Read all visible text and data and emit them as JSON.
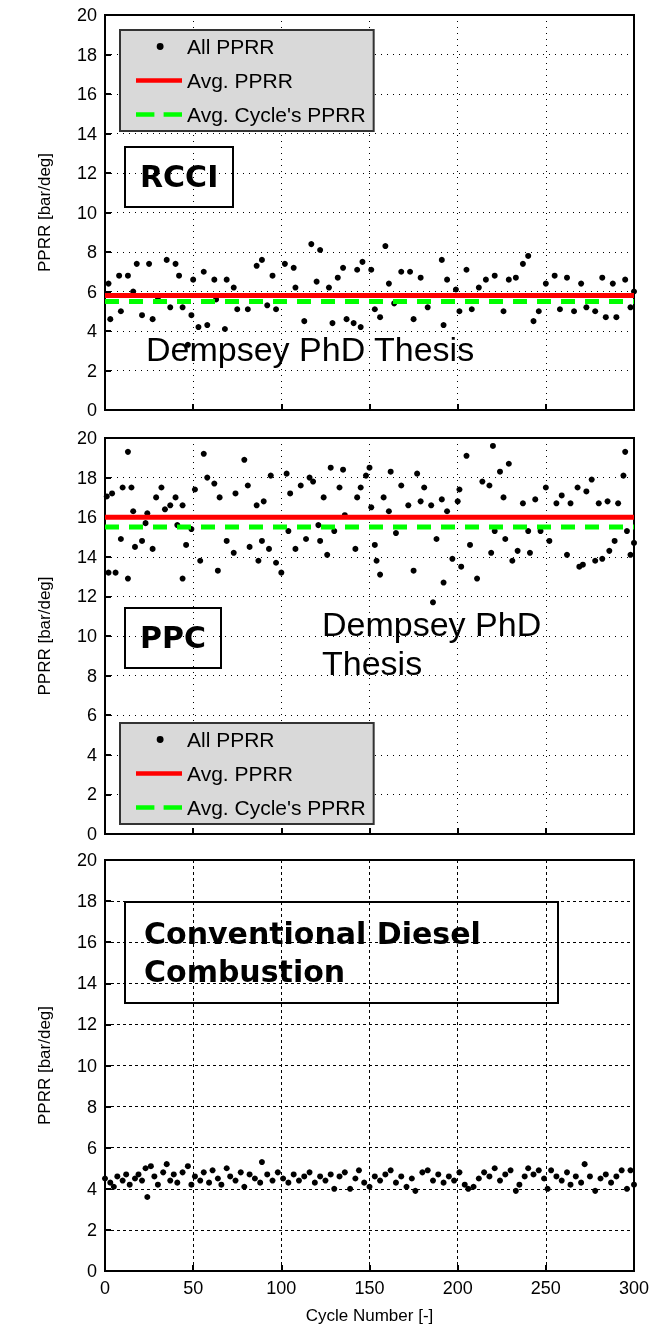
{
  "chart_data": [
    {
      "type": "scatter",
      "ylabel": "PPRR [bar/deg]",
      "annotations": [
        "RCCI",
        "Dempsey PhD Thesis"
      ],
      "xlim": [
        0,
        300
      ],
      "xticks": [
        0,
        50,
        100,
        150,
        200,
        250,
        300
      ],
      "ylim": [
        0,
        20
      ],
      "yticks": [
        0,
        2,
        4,
        6,
        8,
        10,
        12,
        14,
        16,
        18,
        20
      ],
      "tick_labels": "y",
      "grid": true,
      "legend": "top left",
      "series": [
        {
          "name": "All PPRR",
          "color": "#000000",
          "marker": "circle",
          "x": [
            2,
            3,
            8,
            9,
            13,
            16,
            18,
            21,
            25,
            27,
            30,
            35,
            37,
            40,
            42,
            44,
            47,
            49,
            50,
            53,
            56,
            58,
            62,
            63,
            68,
            69,
            73,
            75,
            81,
            86,
            89,
            92,
            95,
            97,
            102,
            107,
            108,
            113,
            117,
            120,
            122,
            127,
            129,
            132,
            135,
            137,
            141,
            143,
            145,
            146,
            151,
            153,
            156,
            159,
            161,
            164,
            168,
            173,
            175,
            179,
            183,
            191,
            192,
            194,
            199,
            201,
            205,
            208,
            212,
            216,
            221,
            226,
            229,
            233,
            237,
            240,
            243,
            246,
            250,
            255,
            258,
            262,
            266,
            270,
            273,
            278,
            282,
            284,
            288,
            290,
            295,
            298,
            300
          ],
          "values": [
            6.4,
            4.6,
            6.8,
            5.0,
            6.8,
            6.0,
            7.4,
            4.8,
            7.4,
            4.6,
            5.6,
            7.6,
            5.2,
            7.4,
            6.8,
            5.2,
            3.3,
            4.8,
            6.6,
            4.2,
            7.0,
            4.3,
            6.6,
            5.6,
            4.1,
            6.6,
            6.2,
            5.1,
            5.1,
            7.3,
            7.6,
            5.3,
            6.8,
            5.1,
            7.4,
            7.2,
            6.2,
            4.5,
            8.4,
            6.5,
            8.1,
            6.2,
            4.4,
            6.7,
            7.2,
            4.6,
            4.4,
            7.1,
            4.2,
            7.5,
            7.1,
            5.1,
            4.7,
            8.3,
            6.4,
            5.4,
            7.0,
            7.0,
            4.6,
            6.7,
            5.2,
            7.6,
            4.3,
            6.6,
            6.1,
            5.0,
            7.1,
            5.1,
            6.2,
            6.6,
            6.8,
            5.0,
            6.6,
            6.7,
            7.4,
            7.8,
            4.5,
            5.0,
            6.4,
            6.8,
            5.1,
            6.7,
            5.0,
            6.4,
            5.2,
            5.0,
            6.7,
            4.7,
            6.4,
            4.7,
            6.6,
            5.2,
            6.0
          ]
        },
        {
          "name": "Avg. PPRR",
          "type": "line",
          "color": "#ff0000",
          "marker": "none",
          "line_style": "solid",
          "x": [
            0,
            300
          ],
          "values": [
            5.8,
            5.8
          ]
        },
        {
          "name": "Avg. Cycle's PPRR",
          "type": "line",
          "color": "#00ff00",
          "marker": "none",
          "line_style": "dashed",
          "x": [
            0,
            300
          ],
          "values": [
            5.5,
            5.5
          ]
        }
      ]
    },
    {
      "type": "scatter",
      "ylabel": "PPRR [bar/deg]",
      "annotations": [
        "PPC",
        "Dempsey PhD Thesis"
      ],
      "xlim": [
        0,
        300
      ],
      "xticks": [
        0,
        50,
        100,
        150,
        200,
        250,
        300
      ],
      "ylim": [
        0,
        20
      ],
      "yticks": [
        0,
        2,
        4,
        6,
        8,
        10,
        12,
        14,
        16,
        18,
        20
      ],
      "tick_labels": "y",
      "grid": true,
      "legend": "bottom left",
      "series": [
        {
          "name": "All PPRR",
          "color": "#000000",
          "marker": "circle",
          "x": [
            1,
            2,
            6,
            4,
            9,
            10,
            13,
            13,
            15,
            16,
            17,
            21,
            23,
            24,
            27,
            29,
            32,
            34,
            37,
            40,
            41,
            44,
            44,
            46,
            49,
            51,
            54,
            56,
            58,
            62,
            64,
            65,
            69,
            73,
            74,
            79,
            81,
            82,
            86,
            87,
            89,
            90,
            93,
            94,
            97,
            100,
            103,
            104,
            105,
            108,
            111,
            114,
            116,
            118,
            121,
            122,
            124,
            126,
            128,
            130,
            133,
            135,
            136,
            142,
            143,
            145,
            148,
            150,
            151,
            153,
            154,
            156,
            158,
            161,
            162,
            165,
            168,
            172,
            175,
            177,
            179,
            181,
            185,
            186,
            188,
            191,
            192,
            194,
            197,
            200,
            201,
            202,
            205,
            207,
            211,
            214,
            218,
            219,
            220,
            221,
            224,
            226,
            227,
            229,
            231,
            234,
            237,
            240,
            241,
            244,
            247,
            250,
            252,
            256,
            259,
            262,
            264,
            268,
            269,
            271,
            273,
            276,
            278,
            280,
            282,
            285,
            286,
            289,
            291,
            295,
            294,
            296,
            298,
            300
          ],
          "values": [
            17.05,
            13.2,
            13.2,
            17.2,
            14.9,
            17.5,
            19.3,
            12.9,
            17.5,
            16.3,
            14.5,
            14.8,
            15.7,
            16.2,
            14.4,
            17.0,
            17.5,
            16.4,
            16.6,
            17.0,
            15.6,
            12.9,
            16.6,
            14.6,
            15.4,
            17.4,
            13.8,
            19.2,
            18.0,
            17.7,
            13.3,
            17.0,
            14.8,
            14.2,
            17.2,
            18.9,
            17.6,
            14.5,
            16.6,
            13.8,
            14.8,
            16.8,
            14.4,
            18.1,
            13.7,
            13.2,
            18.2,
            15.3,
            17.2,
            14.4,
            17.6,
            14.9,
            18.0,
            17.8,
            15.6,
            14.8,
            17.0,
            14.1,
            18.5,
            15.3,
            17.5,
            18.4,
            16.1,
            14.4,
            17.0,
            17.5,
            18.1,
            18.5,
            16.5,
            14.6,
            13.8,
            13.1,
            17.0,
            16.3,
            18.3,
            15.2,
            17.6,
            16.6,
            13.3,
            18.2,
            16.8,
            17.5,
            16.6,
            11.7,
            14.9,
            16.9,
            12.7,
            16.3,
            13.9,
            16.8,
            17.4,
            13.5,
            19.1,
            14.6,
            12.9,
            17.8,
            17.6,
            14.2,
            19.6,
            15.3,
            18.3,
            17.0,
            14.9,
            18.7,
            13.8,
            14.3,
            16.7,
            15.3,
            14.2,
            16.9,
            15.3,
            17.5,
            14.8,
            16.7,
            17.1,
            14.1,
            16.7,
            17.5,
            13.5,
            13.6,
            17.3,
            17.9,
            13.8,
            16.7,
            13.9,
            16.8,
            14.3,
            14.8,
            16.7,
            19.3,
            18.1,
            15.3,
            14.1,
            14.7
          ]
        },
        {
          "name": "Avg. PPRR",
          "type": "line",
          "color": "#ff0000",
          "marker": "none",
          "line_style": "solid",
          "x": [
            0,
            300
          ],
          "values": [
            16.0,
            16.0
          ]
        },
        {
          "name": "Avg. Cycle's PPRR",
          "type": "line",
          "color": "#00ff00",
          "marker": "none",
          "line_style": "dashed",
          "x": [
            0,
            300
          ],
          "values": [
            15.5,
            15.5
          ]
        }
      ]
    },
    {
      "type": "scatter",
      "xlabel": "Cycle Number [-]",
      "ylabel": "PPRR [bar/deg]",
      "annotations": [
        "Conventional Diesel Combustion"
      ],
      "xlim": [
        0,
        300
      ],
      "xticks": [
        0,
        50,
        100,
        150,
        200,
        250,
        300
      ],
      "ylim": [
        0,
        20
      ],
      "yticks": [
        0,
        2,
        4,
        6,
        8,
        10,
        12,
        14,
        16,
        18,
        20
      ],
      "grid": true,
      "series": [
        {
          "color": "#000000",
          "marker": "circle",
          "x": [
            0,
            3,
            5,
            7,
            10,
            12,
            14,
            17,
            19,
            21,
            23,
            24,
            26,
            28,
            30,
            33,
            35,
            37,
            39,
            41,
            44,
            47,
            49,
            51,
            54,
            56,
            59,
            61,
            64,
            66,
            69,
            71,
            74,
            77,
            79,
            82,
            85,
            88,
            89,
            92,
            95,
            98,
            101,
            104,
            107,
            110,
            113,
            116,
            119,
            122,
            125,
            128,
            130,
            133,
            136,
            139,
            142,
            144,
            147,
            150,
            153,
            156,
            159,
            162,
            165,
            168,
            171,
            174,
            176,
            180,
            183,
            186,
            189,
            192,
            195,
            198,
            201,
            204,
            206,
            209,
            212,
            215,
            218,
            221,
            224,
            227,
            230,
            233,
            235,
            238,
            240,
            243,
            246,
            249,
            251,
            253,
            256,
            259,
            262,
            264,
            267,
            270,
            272,
            275,
            278,
            281,
            284,
            287,
            290,
            293,
            296,
            298,
            300
          ],
          "values": [
            4.5,
            4.3,
            4.1,
            4.6,
            4.4,
            4.7,
            4.2,
            4.5,
            4.7,
            4.4,
            5.0,
            3.6,
            5.1,
            4.6,
            4.2,
            4.8,
            5.2,
            4.4,
            4.7,
            4.3,
            4.8,
            5.1,
            4.2,
            4.6,
            4.4,
            4.8,
            4.3,
            4.9,
            4.5,
            4.2,
            5.0,
            4.6,
            4.4,
            4.8,
            4.1,
            4.7,
            4.5,
            4.3,
            5.3,
            4.7,
            4.4,
            4.8,
            4.5,
            4.3,
            4.7,
            4.4,
            4.6,
            4.8,
            4.3,
            4.6,
            4.4,
            4.7,
            4.0,
            4.6,
            4.8,
            4.0,
            4.5,
            4.9,
            4.3,
            4.1,
            4.6,
            4.4,
            4.7,
            4.9,
            4.3,
            4.6,
            4.1,
            4.5,
            3.9,
            4.8,
            4.9,
            4.4,
            4.7,
            4.3,
            4.6,
            4.4,
            4.8,
            4.2,
            4.0,
            4.1,
            4.5,
            4.8,
            4.6,
            5.0,
            4.4,
            4.7,
            4.9,
            3.9,
            4.2,
            4.6,
            5.0,
            4.7,
            4.9,
            4.5,
            4.0,
            4.9,
            4.6,
            4.4,
            4.8,
            4.2,
            4.6,
            4.3,
            5.2,
            4.6,
            3.9,
            4.5,
            4.7,
            4.3,
            4.6,
            4.9,
            4.0,
            4.9,
            4.2
          ]
        }
      ]
    }
  ]
}
